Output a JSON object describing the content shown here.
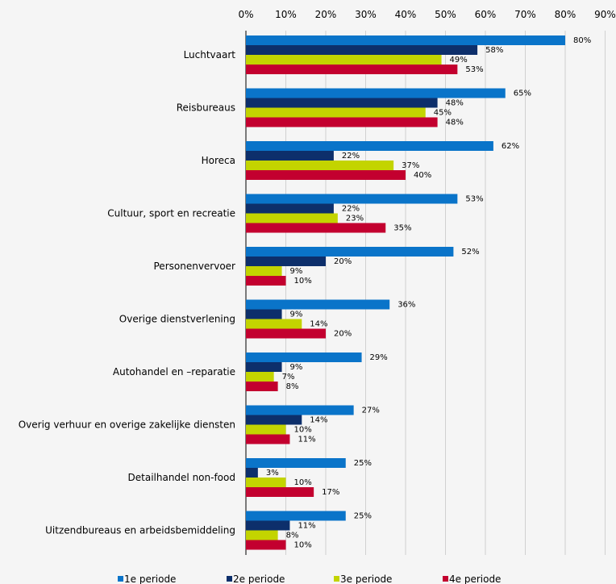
{
  "chart_data": {
    "type": "bar",
    "orientation": "horizontal",
    "title": "",
    "xlabel": "",
    "ylabel": "",
    "xlim": [
      0,
      90
    ],
    "x_ticks": [
      "0%",
      "10%",
      "20%",
      "30%",
      "40%",
      "50%",
      "60%",
      "70%",
      "80%",
      "90%"
    ],
    "grid": true,
    "legend_position": "bottom",
    "categories": [
      "Luchtvaart",
      "Reisbureaus",
      "Horeca",
      "Cultuur, sport en recreatie",
      "Personenvervoer",
      "Overige dienstverlening",
      "Autohandel en –reparatie",
      "Overig verhuur en overige zakelijke diensten",
      "Detailhandel non-food",
      "Uitzendbureaus en arbeidsbemiddeling"
    ],
    "series": [
      {
        "name": "1e periode",
        "color": "#0a74c9",
        "values": [
          80,
          65,
          62,
          53,
          52,
          36,
          29,
          27,
          25,
          25
        ]
      },
      {
        "name": "2e periode",
        "color": "#0d2f6b",
        "values": [
          58,
          48,
          22,
          22,
          20,
          9,
          9,
          14,
          3,
          11
        ]
      },
      {
        "name": "3e periode",
        "color": "#c3d400",
        "values": [
          49,
          45,
          37,
          23,
          9,
          14,
          7,
          10,
          10,
          8
        ]
      },
      {
        "name": "4e periode",
        "color": "#c3002f",
        "values": [
          53,
          48,
          40,
          35,
          10,
          20,
          8,
          11,
          17,
          10
        ]
      }
    ],
    "value_suffix": "%"
  }
}
